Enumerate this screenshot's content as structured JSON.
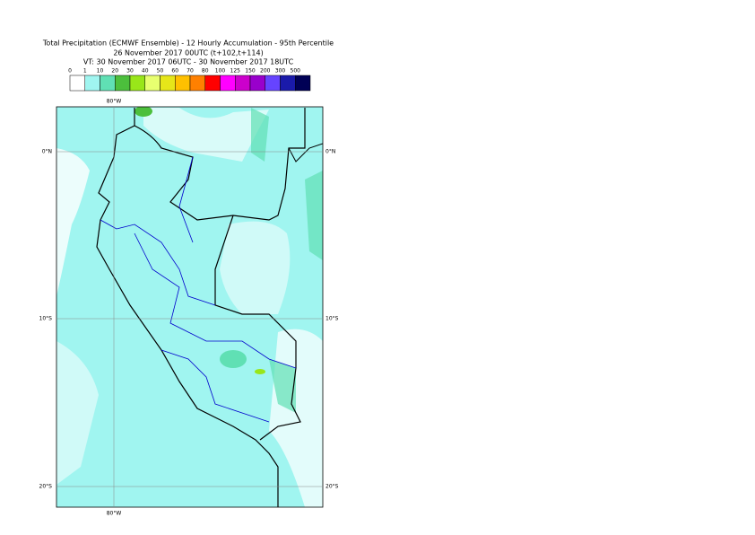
{
  "title": {
    "line1": "Total Precipitation (ECMWF Ensemble) - 12 Hourly Accumulation - 95th Percentile",
    "line2": "26 November 2017 00UTC (t+102,t+114)",
    "line3": "VT: 30 November 2017 06UTC - 30 November 2017 18UTC"
  },
  "legend": {
    "labels": [
      "0",
      "1",
      "10",
      "20",
      "30",
      "40",
      "50",
      "60",
      "70",
      "80",
      "100",
      "125",
      "150",
      "200",
      "300",
      "500"
    ],
    "colors": [
      "#ffffff",
      "#a0f5f0",
      "#60e0b4",
      "#4cbf3c",
      "#99e619",
      "#e8ff70",
      "#e6e619",
      "#ffc000",
      "#ff8000",
      "#ff0000",
      "#ff00ff",
      "#cc00cc",
      "#9900cc",
      "#6644ff",
      "#1a1aaa",
      "#000055"
    ]
  },
  "map": {
    "lon_labels": [
      "80°W"
    ],
    "lat_labels": [
      "0°N",
      "10°S",
      "20°S"
    ]
  }
}
